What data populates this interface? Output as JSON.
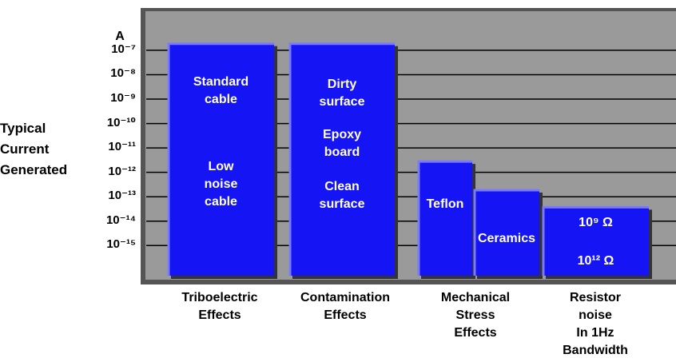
{
  "chart_data": {
    "type": "bar",
    "log": true,
    "grid": true,
    "y_unit": "A",
    "ylabel": "Typical\nCurrent\nGenerated",
    "ylim": [
      4e-17,
      4e-06
    ],
    "yticks": [
      {
        "value": 1e-07,
        "label": "10⁻⁷"
      },
      {
        "value": 1e-08,
        "label": "10⁻⁸"
      },
      {
        "value": 1e-09,
        "label": "10⁻⁹"
      },
      {
        "value": 1e-10,
        "label": "10⁻¹⁰"
      },
      {
        "value": 1e-11,
        "label": "10⁻¹¹"
      },
      {
        "value": 1e-12,
        "label": "10⁻¹²"
      },
      {
        "value": 1e-13,
        "label": "10⁻¹³"
      },
      {
        "value": 1e-14,
        "label": "10⁻¹⁴"
      },
      {
        "value": 1e-15,
        "label": "10⁻¹⁵"
      }
    ],
    "categories": [
      "Triboelectric\nEffects",
      "Contamination\nEffects",
      "Mechanical\nStress\nEffects",
      "Resistor\nnoise\nIn 1Hz\nBandwidth"
    ],
    "color": "#1414f5",
    "bars": [
      [
        {
          "value": 2e-07,
          "labels": [
            "Standard\ncable",
            "Low\nnoise\ncable"
          ]
        }
      ],
      [
        {
          "value": 2e-07,
          "labels": [
            "Dirty\nsurface",
            "Epoxy\nboard",
            "Clean\nsurface"
          ]
        }
      ],
      [
        {
          "value": 3e-12,
          "labels": [
            "Teflon"
          ]
        },
        {
          "value": 2e-13,
          "labels": [
            "Ceramics"
          ]
        }
      ],
      [
        {
          "value": 4e-14,
          "labels": [
            "10⁹ Ω",
            "10¹² Ω"
          ]
        }
      ]
    ]
  }
}
